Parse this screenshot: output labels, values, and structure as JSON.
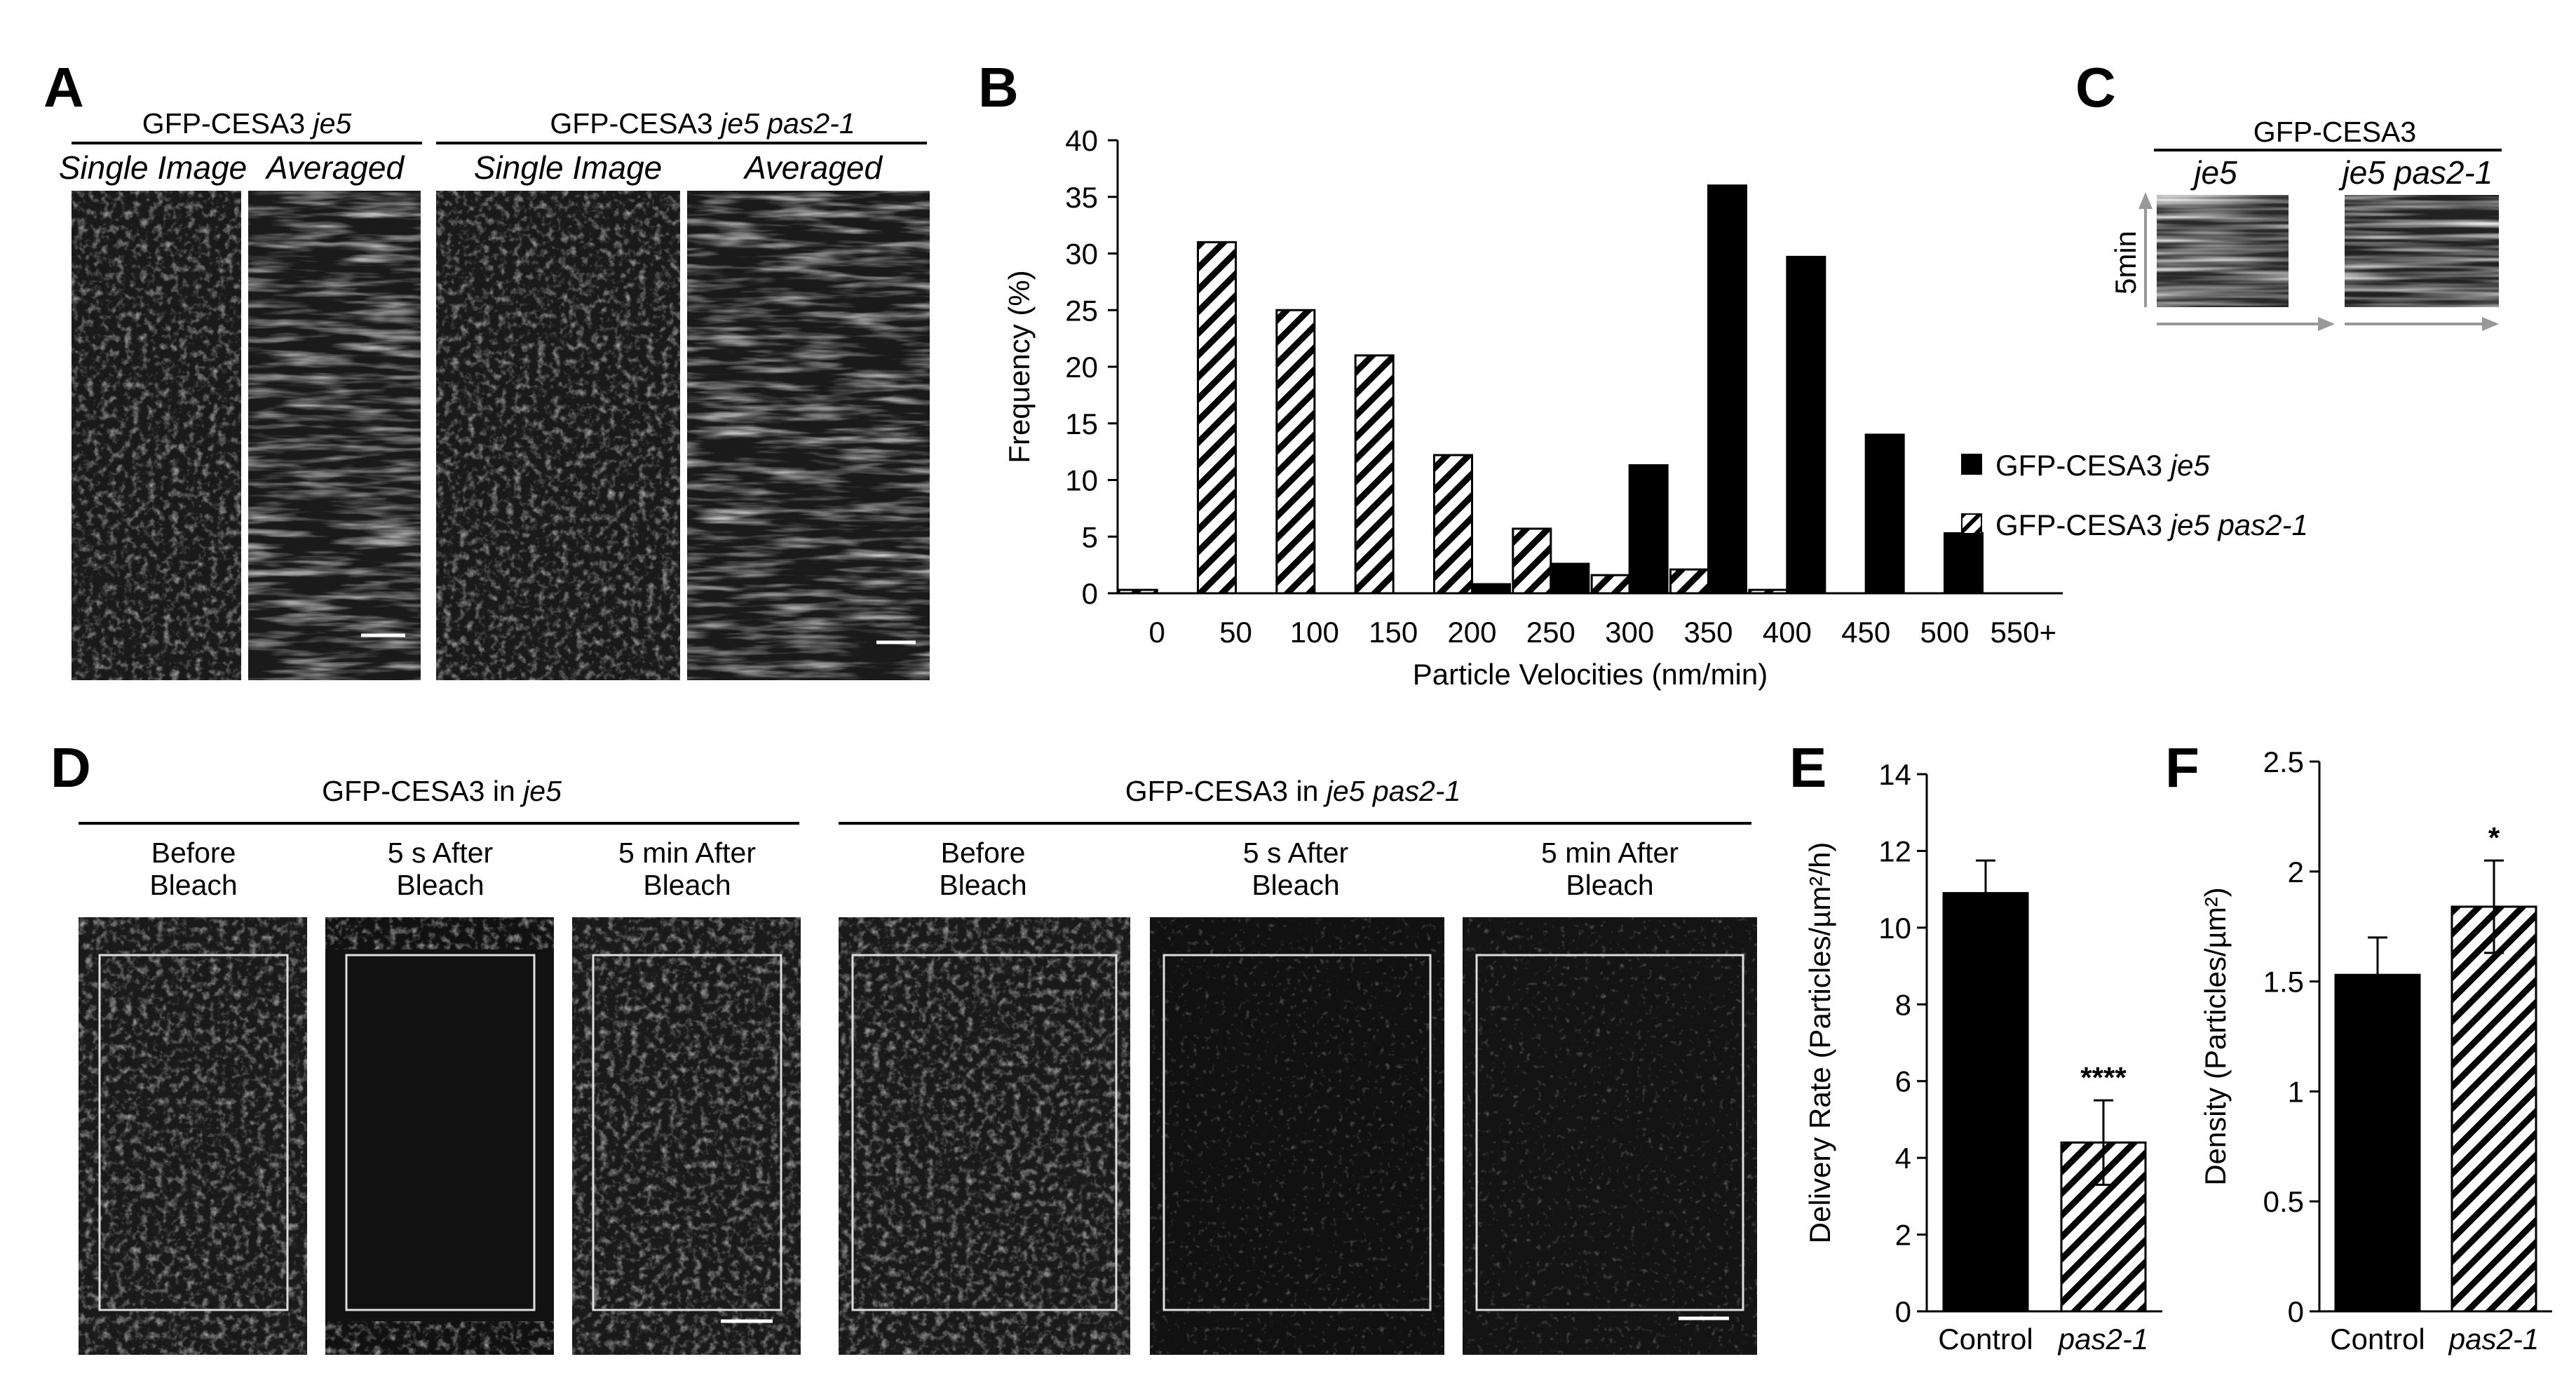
{
  "panels": {
    "A": {
      "label": "A",
      "groups": [
        {
          "prefix": "GFP-CESA3 ",
          "italic": "je5",
          "rest": ""
        },
        {
          "prefix": "GFP-CESA3 ",
          "italic": "je5 pas2-1",
          "rest": ""
        }
      ],
      "columns": [
        "Single Image",
        "Averaged",
        "Single Image",
        "Averaged"
      ]
    },
    "B": {
      "label": "B",
      "legend": [
        {
          "prefix": "GFP-CESA3 ",
          "italic": "je5",
          "fill": "solid"
        },
        {
          "prefix": "GFP-CESA3 ",
          "italic": "je5 pas2-1",
          "fill": "hatched"
        }
      ]
    },
    "C": {
      "label": "C",
      "title": "GFP-CESA3",
      "columns": [
        "je5",
        "je5 pas2-1"
      ],
      "time_label": "5min"
    },
    "D": {
      "label": "D",
      "groups": [
        {
          "prefix": "GFP-CESA3 in ",
          "italic": "je5"
        },
        {
          "prefix": "GFP-CESA3 in ",
          "italic": "je5 pas2-1"
        }
      ],
      "frames": [
        [
          "Before",
          "Bleach"
        ],
        [
          "5 s After",
          "Bleach"
        ],
        [
          "5 min After",
          "Bleach"
        ],
        [
          "Before",
          "Bleach"
        ],
        [
          "5 s After",
          "Bleach"
        ],
        [
          "5 min After",
          "Bleach"
        ]
      ]
    },
    "E": {
      "label": "E",
      "significance": "****"
    },
    "F": {
      "label": "F",
      "significance": "*"
    }
  },
  "colors": {
    "solid": "#000000",
    "background": "#ffffff",
    "micrograph": "#1a1a1a"
  },
  "chart_data": [
    {
      "type": "bar",
      "panel": "B",
      "categories": [
        "0",
        "50",
        "100",
        "150",
        "200",
        "250",
        "300",
        "350",
        "400",
        "450",
        "500",
        "550+"
      ],
      "series": [
        {
          "name": "GFP-CESA3 je5",
          "fill": "solid",
          "values": [
            0,
            0,
            0,
            0,
            0.8,
            2.6,
            11.3,
            36,
            29.7,
            14,
            5.3,
            0
          ]
        },
        {
          "name": "GFP-CESA3 je5 pas2-1",
          "fill": "hatched",
          "values": [
            0.3,
            31,
            25,
            21,
            12.2,
            5.7,
            1.6,
            2.1,
            0.3,
            0,
            0,
            0
          ]
        }
      ],
      "yticks": [
        "0",
        "5",
        "10",
        "15",
        "20",
        "25",
        "30",
        "35",
        "40"
      ],
      "xlabel": "Particle Velocities (nm/min)",
      "ylabel": "Frequency (%)",
      "ylim": [
        0,
        40
      ],
      "legend_position": "right"
    },
    {
      "type": "bar",
      "panel": "E",
      "categories": [
        "Control",
        "pas2-1"
      ],
      "italic_categories": [
        false,
        true
      ],
      "values": [
        10.9,
        4.4
      ],
      "errors": [
        0.85,
        1.1
      ],
      "fills": [
        "solid",
        "hatched"
      ],
      "yticks": [
        "0",
        "2",
        "4",
        "6",
        "8",
        "10",
        "12",
        "14"
      ],
      "ylabel": "Delivery Rate (Particles/µm²/h)",
      "ylim": [
        0,
        14
      ]
    },
    {
      "type": "bar",
      "panel": "F",
      "categories": [
        "Control",
        "pas2-1"
      ],
      "italic_categories": [
        false,
        true
      ],
      "values": [
        1.53,
        1.84
      ],
      "errors": [
        0.17,
        0.21
      ],
      "fills": [
        "solid",
        "hatched"
      ],
      "yticks": [
        "0",
        "0.5",
        "1",
        "1.5",
        "2",
        "2.5"
      ],
      "ylabel": "Density (Particles/µm²)",
      "ylim": [
        0,
        2.5
      ]
    }
  ]
}
